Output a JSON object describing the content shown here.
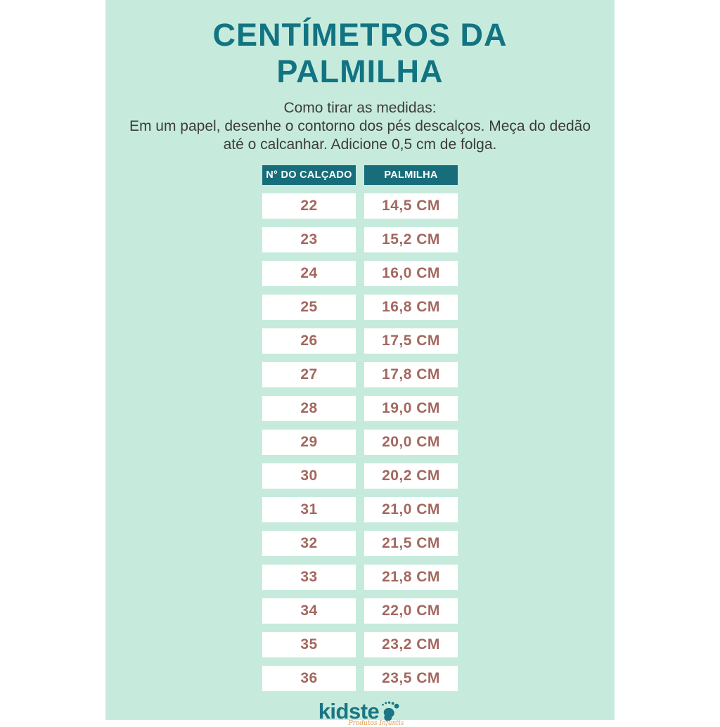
{
  "panel": {
    "title": "CENTÍMETROS DA PALMILHA",
    "instructions_heading": "Como tirar as medidas:",
    "instructions_body": "Em um papel, desenhe o contorno dos pés descalços. Meça do dedão até o calcanhar. Adicione 0,5 cm de folga."
  },
  "table": {
    "headers": [
      "N° DO CALÇADO",
      "PALMILHA"
    ],
    "rows": [
      [
        "22",
        "14,5 CM"
      ],
      [
        "23",
        "15,2 CM"
      ],
      [
        "24",
        "16,0 CM"
      ],
      [
        "25",
        "16,8 CM"
      ],
      [
        "26",
        "17,5 CM"
      ],
      [
        "27",
        "17,8 CM"
      ],
      [
        "28",
        "19,0 CM"
      ],
      [
        "29",
        "20,0 CM"
      ],
      [
        "30",
        "20,2 CM"
      ],
      [
        "31",
        "21,0 CM"
      ],
      [
        "32",
        "21,5 CM"
      ],
      [
        "33",
        "21,8 CM"
      ],
      [
        "34",
        "22,0 CM"
      ],
      [
        "35",
        "23,2 CM"
      ],
      [
        "36",
        "23,5 CM"
      ]
    ]
  },
  "footer": {
    "brand": "kidste",
    "tagline": "Produtos Infantis",
    "footprint_icon": "footprint-icon"
  },
  "colors": {
    "panel_background": "#c6ebdd",
    "page_background": "#ffffff",
    "title_text": "#127482",
    "header_background": "#186d7a",
    "header_text": "#ffffff",
    "cell_background": "#ffffff",
    "cell_text": "#a2685f",
    "body_text": "#3c3c3c",
    "brand_text": "#1b7583",
    "tagline_text": "#dd9a4e"
  },
  "chart_data": {
    "type": "table",
    "title": "CENTÍMETROS DA PALMILHA",
    "columns": [
      "N° DO CALÇADO",
      "PALMILHA"
    ],
    "rows": [
      [
        "22",
        "14,5 CM"
      ],
      [
        "23",
        "15,2 CM"
      ],
      [
        "24",
        "16,0 CM"
      ],
      [
        "25",
        "16,8 CM"
      ],
      [
        "26",
        "17,5 CM"
      ],
      [
        "27",
        "17,8 CM"
      ],
      [
        "28",
        "19,0 CM"
      ],
      [
        "29",
        "20,0 CM"
      ],
      [
        "30",
        "20,2 CM"
      ],
      [
        "31",
        "21,0 CM"
      ],
      [
        "32",
        "21,5 CM"
      ],
      [
        "33",
        "21,8 CM"
      ],
      [
        "34",
        "22,0 CM"
      ],
      [
        "35",
        "23,2 CM"
      ],
      [
        "36",
        "23,5 CM"
      ]
    ],
    "sizes": [
      22,
      23,
      24,
      25,
      26,
      27,
      28,
      29,
      30,
      31,
      32,
      33,
      34,
      35,
      36
    ],
    "insole_cm": [
      14.5,
      15.2,
      16.0,
      16.8,
      17.5,
      17.8,
      19.0,
      20.0,
      20.2,
      21.0,
      21.5,
      21.8,
      22.0,
      23.2,
      23.5
    ]
  }
}
